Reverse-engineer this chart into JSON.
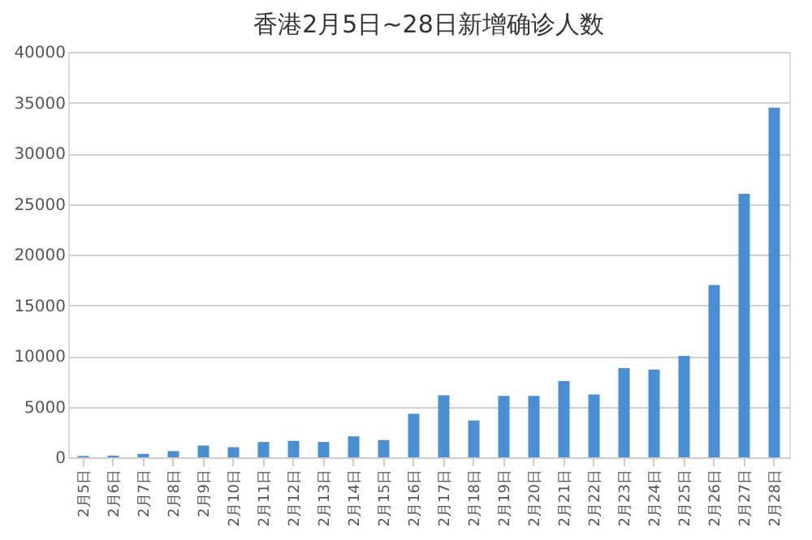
{
  "chart_data": {
    "type": "bar",
    "title": "香港2月5日~28日新增确诊人数",
    "categories": [
      "2月5日",
      "2月6日",
      "2月7日",
      "2月8日",
      "2月9日",
      "2月10日",
      "2月11日",
      "2月12日",
      "2月13日",
      "2月14日",
      "2月15日",
      "2月16日",
      "2月17日",
      "2月18日",
      "2月19日",
      "2月20日",
      "2月21日",
      "2月22日",
      "2月23日",
      "2月24日",
      "2月25日",
      "2月26日",
      "2月27日",
      "2月28日"
    ],
    "values": [
      130,
      160,
      340,
      610,
      1160,
      1000,
      1510,
      1620,
      1510,
      2070,
      1700,
      4290,
      6120,
      3630,
      6060,
      6070,
      7530,
      6210,
      8800,
      8670,
      10000,
      17000,
      26000,
      34500
    ],
    "color": "#4a8fd3",
    "ylim": [
      0,
      40000
    ],
    "yticks": [
      0,
      5000,
      10000,
      15000,
      20000,
      25000,
      30000,
      35000,
      40000
    ],
    "grid": "y"
  }
}
